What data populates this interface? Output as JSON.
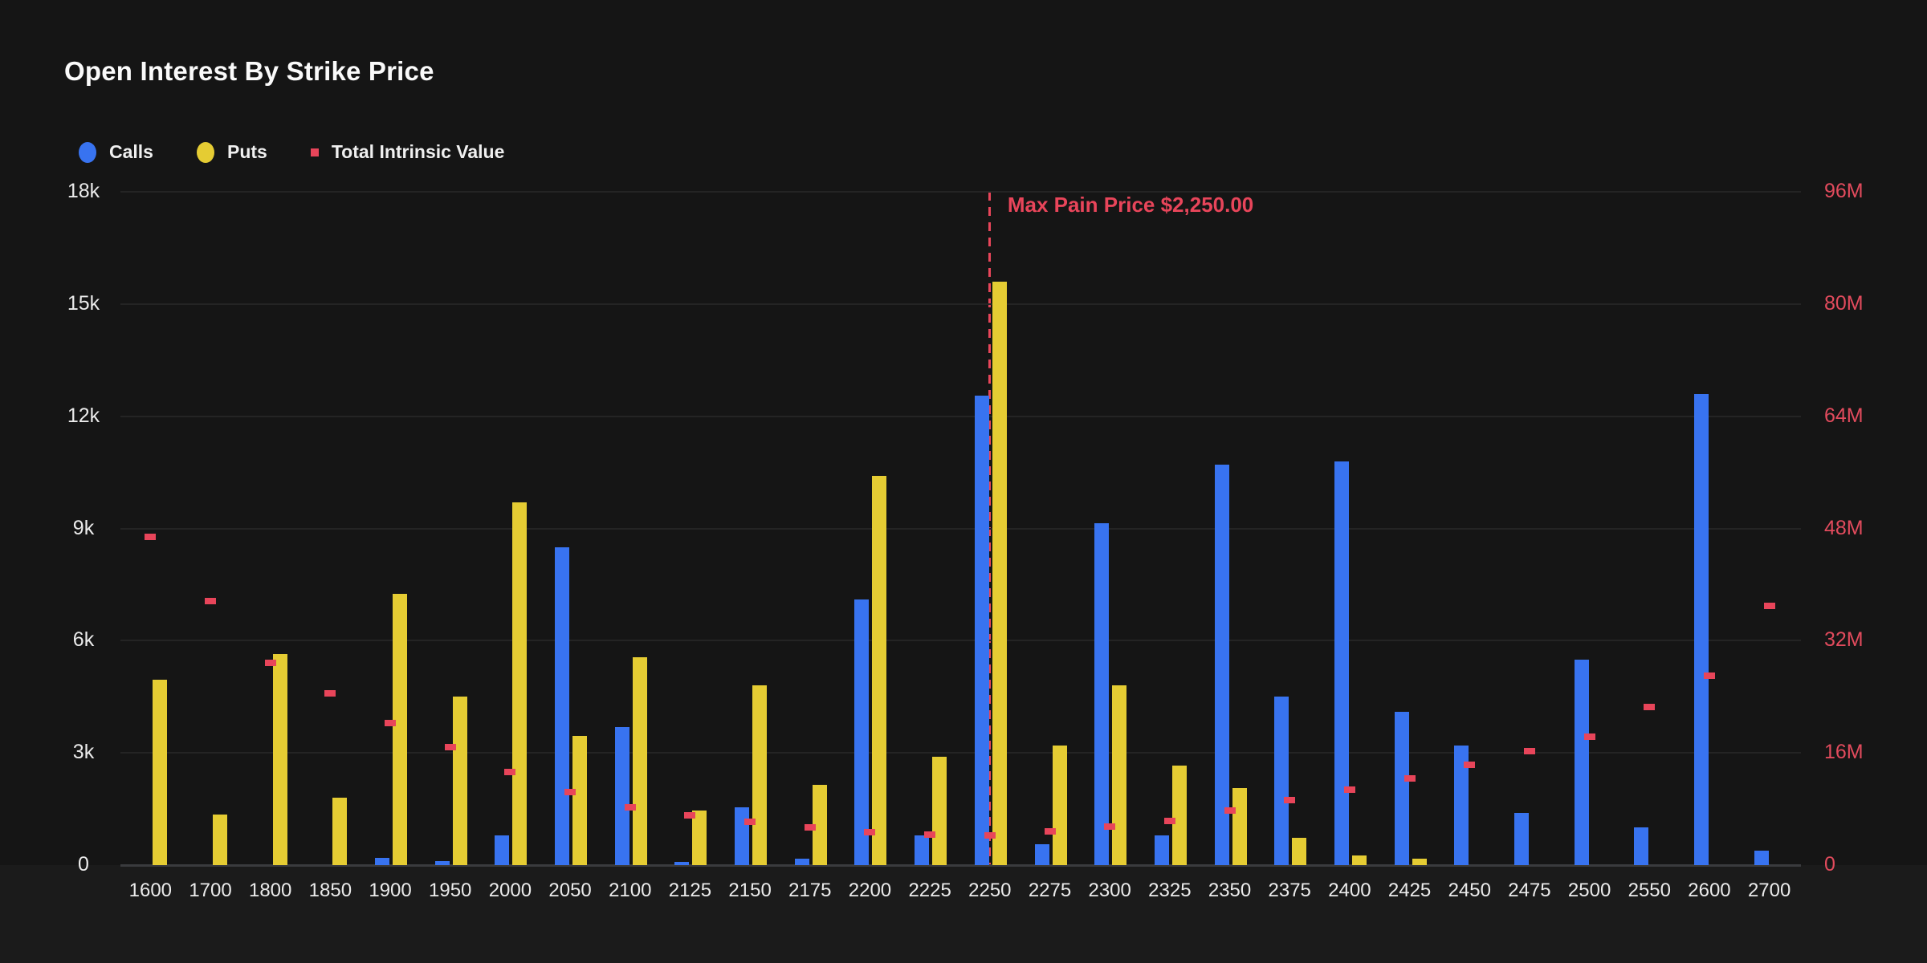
{
  "title": "Open Interest By Strike Price",
  "legend": [
    {
      "label": "Calls",
      "marker": "circle",
      "color": "#3873f0"
    },
    {
      "label": "Puts",
      "marker": "circle",
      "color": "#e5cc33"
    },
    {
      "label": "Total Intrinsic Value",
      "marker": "square",
      "color": "#e8455a"
    }
  ],
  "colors": {
    "background": "#151515",
    "calls": "#3873f0",
    "puts": "#e5cc33",
    "intrinsic": "#e8455a",
    "left_axis_text": "#ebebeb",
    "right_axis_text": "#e24b5d",
    "gridline": "#242424"
  },
  "axes": {
    "left_ticks": [
      "18k",
      "15k",
      "12k",
      "9k",
      "6k",
      "3k",
      "0"
    ],
    "right_ticks": [
      "96M",
      "80M",
      "64M",
      "48M",
      "32M",
      "16M",
      "0"
    ]
  },
  "chart_data": {
    "type": "bar",
    "title": "Open Interest By Strike Price",
    "categories": [
      "1600",
      "1700",
      "1800",
      "1850",
      "1900",
      "1950",
      "2000",
      "2050",
      "2100",
      "2125",
      "2150",
      "2175",
      "2200",
      "2225",
      "2250",
      "2275",
      "2300",
      "2325",
      "2350",
      "2375",
      "2400",
      "2425",
      "2450",
      "2475",
      "2500",
      "2550",
      "2600",
      "2700"
    ],
    "series": [
      {
        "name": "Calls",
        "type": "bar",
        "axis": "left",
        "values": [
          0,
          0,
          0,
          0,
          200,
          100,
          800,
          8500,
          3700,
          80,
          1550,
          180,
          7100,
          800,
          12550,
          550,
          9150,
          800,
          10700,
          4500,
          10800,
          4100,
          3200,
          1400,
          5500,
          1000,
          12600,
          380
        ]
      },
      {
        "name": "Puts",
        "type": "bar",
        "axis": "left",
        "values": [
          4950,
          1350,
          5650,
          1800,
          7250,
          4500,
          9700,
          3450,
          5550,
          1450,
          4800,
          2150,
          10400,
          2900,
          15600,
          3200,
          4800,
          2650,
          2050,
          720,
          250,
          170,
          0,
          0,
          0,
          0,
          0,
          0
        ]
      },
      {
        "name": "Total Intrinsic Value",
        "type": "point",
        "axis": "right",
        "values": [
          46800000,
          37600000,
          28800000,
          24500000,
          20300000,
          16800000,
          13300000,
          10400000,
          8200000,
          7100000,
          6200000,
          5400000,
          4700000,
          4400000,
          4200000,
          4800000,
          5500000,
          6300000,
          7800000,
          9300000,
          10800000,
          12400000,
          14300000,
          16200000,
          18300000,
          22500000,
          27000000,
          37000000
        ]
      }
    ],
    "xlabel": "",
    "ylabel_left": "",
    "ylabel_right": "",
    "ylim_left": [
      0,
      18000
    ],
    "ylim_right": [
      0,
      96000000
    ],
    "grid": true,
    "legend_position": "top-left",
    "max_pain": {
      "category": "2250",
      "label": "Max Pain Price $2,250.00"
    }
  }
}
